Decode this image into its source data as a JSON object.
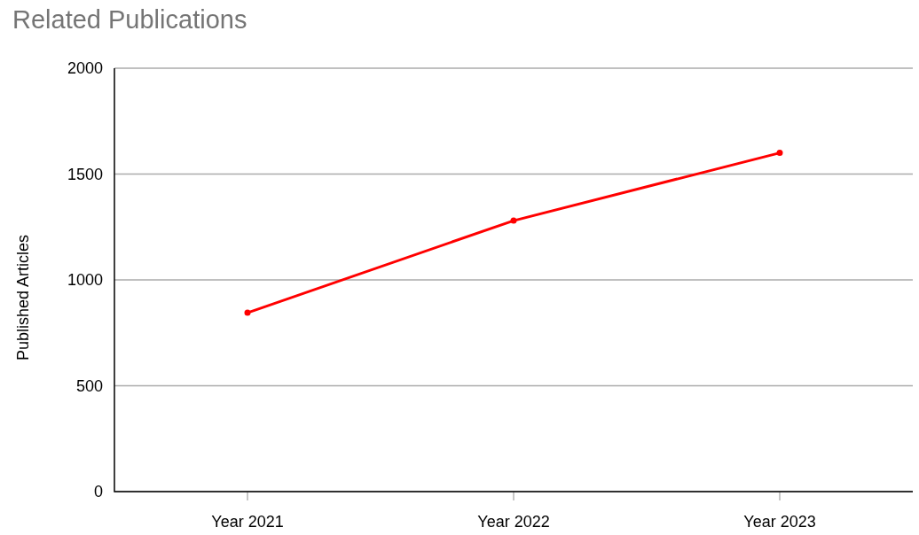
{
  "chart_data": {
    "type": "line",
    "title": "Related Publications",
    "ylabel": "Published Articles",
    "categories": [
      "Year 2021",
      "Year 2022",
      "Year 2023"
    ],
    "series": [
      {
        "color": "#ff0000",
        "values": [
          845,
          1280,
          1600
        ]
      }
    ],
    "ylim": [
      0,
      2000
    ],
    "yticks": [
      0,
      500,
      1000,
      1500,
      2000
    ],
    "grid": "y",
    "marker": "circle",
    "line_style": "solid"
  }
}
